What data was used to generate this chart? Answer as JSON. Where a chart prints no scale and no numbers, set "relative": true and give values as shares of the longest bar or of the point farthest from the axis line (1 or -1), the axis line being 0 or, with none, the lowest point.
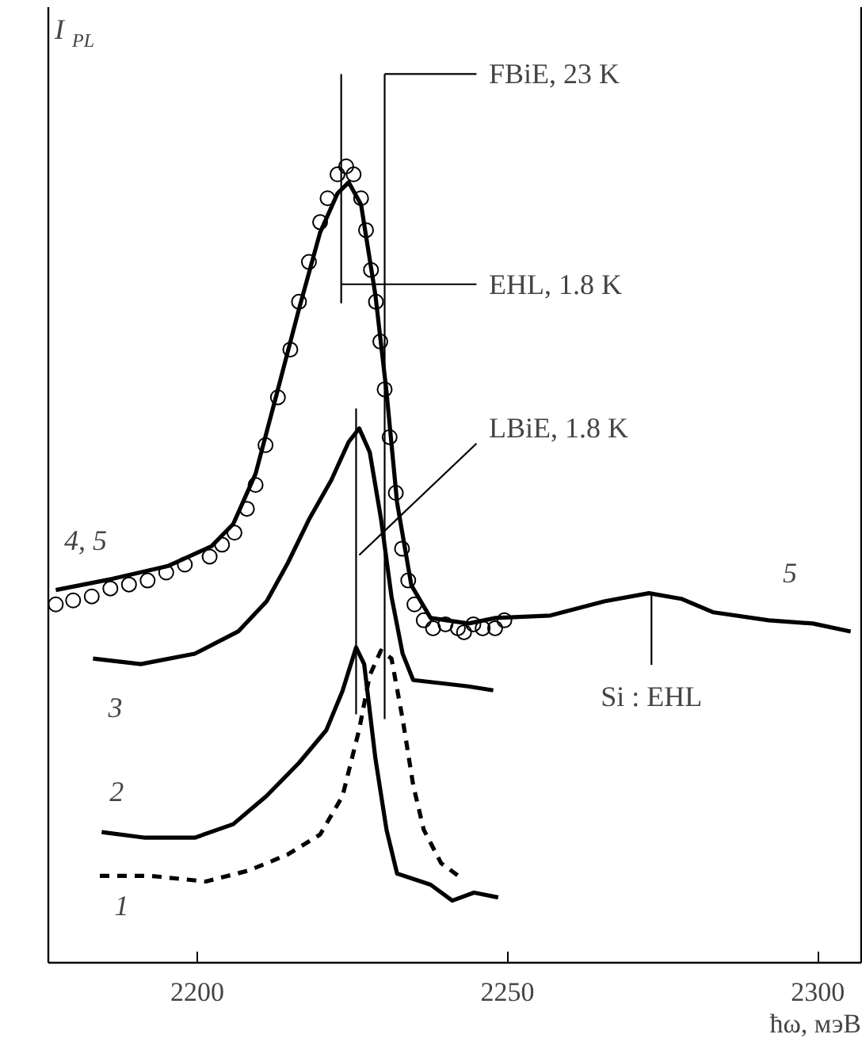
{
  "chart_data": {
    "type": "line",
    "relative": true,
    "xlabel": "ħω, мэВ",
    "ylabel": "I$_{PL}$",
    "xlim": [
      2176,
      2307
    ],
    "xticks": [
      2200,
      2250,
      2300
    ],
    "grid": false,
    "tick_labels": "x",
    "ref_lines": [
      {
        "axis": "x",
        "value": 2230.2,
        "label": "FBiE, 23 K"
      },
      {
        "axis": "x",
        "value": 2223.2,
        "label": "EHL, 1.8 K"
      },
      {
        "axis": "x",
        "value": 2225.6,
        "label": "LBiE, 1.8 K"
      }
    ],
    "series": [
      {
        "color": "#000000",
        "line_style": "dashed",
        "x": [
          2184.3,
          2192.6,
          2201.4,
          2208.4,
          2214.6,
          2219.8,
          2223.4,
          2226.1,
          2227.8,
          2229.6,
          2231.3,
          2233.1,
          2234.8,
          2236.5,
          2239.3,
          2242.8
        ],
        "values": [
          0.109,
          0.109,
          0.102,
          0.116,
          0.136,
          0.161,
          0.209,
          0.293,
          0.361,
          0.392,
          0.382,
          0.306,
          0.223,
          0.167,
          0.125,
          0.105
        ]
      },
      {
        "color": "#000000",
        "line_style": "solid",
        "x": [
          2184.6,
          2191.6,
          2199.6,
          2205.8,
          2211.1,
          2216.4,
          2220.8,
          2223.4,
          2225.6,
          2226.9,
          2228.7,
          2230.5,
          2232.2,
          2237.6,
          2241.1,
          2244.6,
          2248.5
        ],
        "values": [
          0.164,
          0.157,
          0.157,
          0.174,
          0.209,
          0.251,
          0.292,
          0.341,
          0.396,
          0.375,
          0.257,
          0.167,
          0.112,
          0.098,
          0.078,
          0.088,
          0.082
        ]
      },
      {
        "color": "#000000",
        "line_style": "solid",
        "x": [
          2183.2,
          2190.9,
          2199.6,
          2206.6,
          2211.2,
          2214.6,
          2218.1,
          2221.6,
          2224.4,
          2226.1,
          2227.8,
          2229.6,
          2231.3,
          2233.1,
          2234.8,
          2239.3,
          2243.7,
          2247.7
        ],
        "values": [
          0.382,
          0.375,
          0.388,
          0.416,
          0.454,
          0.502,
          0.558,
          0.606,
          0.654,
          0.671,
          0.641,
          0.558,
          0.46,
          0.388,
          0.355,
          0.351,
          0.347,
          0.342
        ]
      },
      {
        "type": "scatter",
        "marker": "circle",
        "color": "#000000",
        "x": [
          2177.2,
          2180,
          2183,
          2186,
          2189,
          2192,
          2195,
          2198,
          2202,
          2204,
          2206,
          2208,
          2209.4,
          2211,
          2213,
          2215,
          2216.4,
          2218,
          2219.8,
          2221,
          2222.6,
          2224,
          2225.2,
          2226.4,
          2227.2,
          2228,
          2228.8,
          2229.5,
          2230.2,
          2231,
          2232,
          2233,
          2234,
          2235,
          2236.5,
          2238,
          2240,
          2242,
          2243,
          2244.5,
          2246,
          2248,
          2249.5
        ],
        "values": [
          0.45,
          0.455,
          0.46,
          0.47,
          0.475,
          0.48,
          0.49,
          0.5,
          0.51,
          0.525,
          0.54,
          0.57,
          0.6,
          0.65,
          0.71,
          0.77,
          0.83,
          0.88,
          0.93,
          0.96,
          0.99,
          1.0,
          0.99,
          0.96,
          0.92,
          0.87,
          0.83,
          0.78,
          0.72,
          0.66,
          0.59,
          0.52,
          0.48,
          0.45,
          0.43,
          0.42,
          0.425,
          0.42,
          0.415,
          0.425,
          0.42,
          0.42,
          0.43
        ]
      },
      {
        "color": "#000000",
        "line_style": "solid",
        "x": [
          2177.2,
          2186.3,
          2195.2,
          2202.3,
          2205.8,
          2209.4,
          2212.9,
          2216.4,
          2219.8,
          2222.6,
          2224.4,
          2226.4,
          2228.7,
          2230.5,
          2232.2,
          2234.5,
          2237.6,
          2243.7,
          2248.1,
          2256.9,
          2265.7,
          2272.8,
          2278,
          2283.2,
          2292.1,
          2299.2,
          2305.3
        ],
        "values": [
          0.468,
          0.482,
          0.498,
          0.523,
          0.551,
          0.614,
          0.717,
          0.821,
          0.917,
          0.966,
          0.98,
          0.952,
          0.839,
          0.717,
          0.578,
          0.474,
          0.433,
          0.426,
          0.433,
          0.436,
          0.454,
          0.464,
          0.457,
          0.44,
          0.43,
          0.426,
          0.416
        ]
      }
    ],
    "annotations": [
      {
        "text": "Si : EHL",
        "x": 2273.2,
        "y": 0.464
      },
      "1",
      "2",
      "3",
      "4, 5",
      "5"
    ]
  }
}
